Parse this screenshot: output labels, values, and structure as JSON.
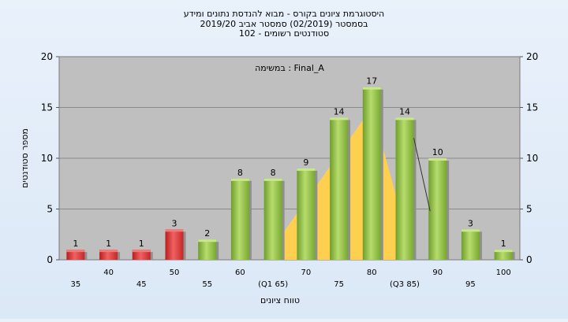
{
  "chart_data": {
    "type": "bar",
    "title_lines": [
      "היסטוגרמת ציונים בקורס - מבוא להנדסת נתונים ומידע",
      "בסמסטר  (02/2019)  סמסטר אביב 2019/20",
      "סטודנטים רשומים - 102"
    ],
    "task_label": "במשימה : Final_A",
    "xlabel": "טווח ציונים",
    "ylabel": "מספר סטודנטים",
    "ylim": [
      0,
      20
    ],
    "y_ticks": [
      0,
      5,
      10,
      15,
      20
    ],
    "grid": true,
    "categories": [
      "35",
      "40",
      "45",
      "50",
      "55",
      "60",
      "(Q1 65)",
      "70",
      "75",
      "80",
      "(Q3 85)",
      "90",
      "95",
      "100"
    ],
    "values": [
      1,
      1,
      1,
      3,
      2,
      8,
      8,
      9,
      14,
      17,
      14,
      10,
      3,
      1
    ],
    "bar_colors": [
      "red",
      "red",
      "red",
      "red",
      "green",
      "green",
      "green",
      "green",
      "green",
      "green",
      "green",
      "green",
      "green",
      "green"
    ],
    "colors": {
      "red": "#e03a3a",
      "green": "#8cc63f",
      "quartile_area": "#ffd050",
      "plot_bg": "#bfbfbf"
    },
    "quartile_area": {
      "x_start": "(Q1 65)",
      "x_peak": "80",
      "x_end": "(Q3 85)",
      "y_peak": 15
    }
  }
}
